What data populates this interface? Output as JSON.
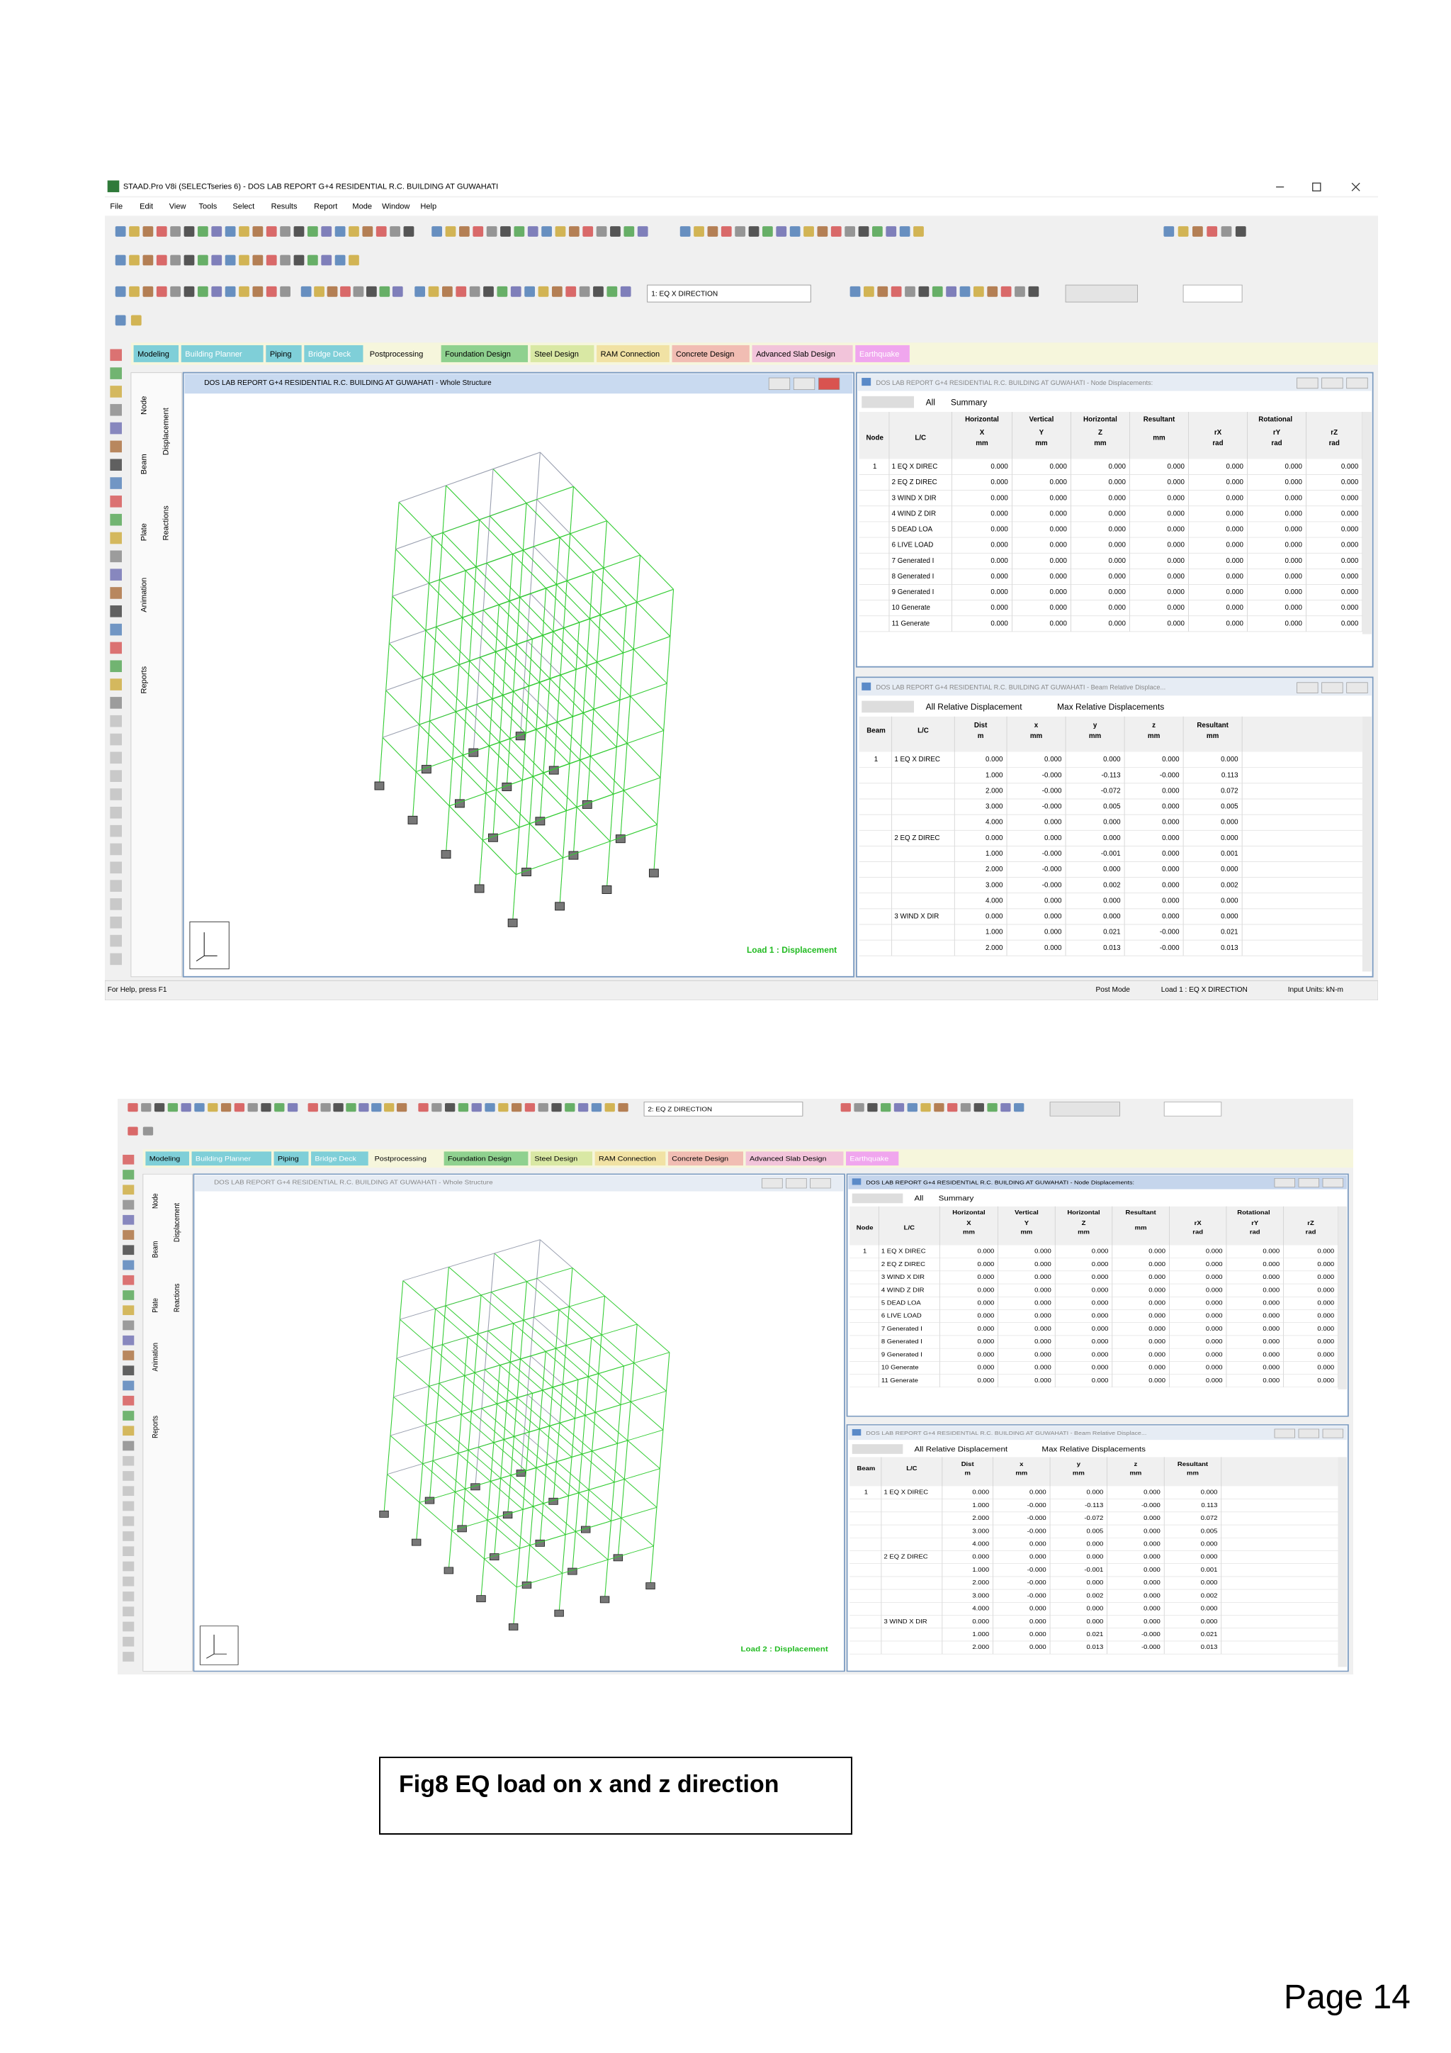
{
  "screenshots": [
    {
      "app_title": "STAAD.Pro V8i (SELECTseries 6) - DOS LAB REPORT G+4 RESIDENTIAL R.C. BUILDING AT GUWAHATI",
      "menu": [
        "File",
        "Edit",
        "View",
        "Tools",
        "Select",
        "Results",
        "Report",
        "Mode",
        "Window",
        "Help"
      ],
      "load_case": "1: EQ X DIRECTION",
      "tabs": [
        "Modeling",
        "Building Planner",
        "Piping",
        "Bridge Deck",
        "Postprocessing",
        "Foundation Design",
        "Steel Design",
        "RAM Connection",
        "Concrete Design",
        "Advanced Slab Design",
        "Earthquake"
      ],
      "side_tabs": [
        "Node",
        "Beam",
        "Plate",
        "Animation",
        "Reports"
      ],
      "result_tabs": [
        "Displacement",
        "Reactions"
      ],
      "view_title": "DOS LAB REPORT G+4 RESIDENTIAL R.C. BUILDING AT GUWAHATI - Whole Structure",
      "view_label": "Load 1 : Displacement",
      "node_window": {
        "title": "DOS LAB REPORT G+4 RESIDENTIAL R.C. BUILDING AT GUWAHATI - Node Displacements:",
        "tabs": [
          "All",
          "Summary"
        ],
        "group_headers": [
          "Horizontal",
          "Vertical",
          "Horizontal",
          "Resultant",
          "Rotational"
        ],
        "columns": [
          [
            "Node"
          ],
          [
            "L/C"
          ],
          [
            "X",
            "mm"
          ],
          [
            "Y",
            "mm"
          ],
          [
            "Z",
            "mm"
          ],
          [
            "mm"
          ],
          [
            "rX",
            "rad"
          ],
          [
            "rY",
            "rad"
          ],
          [
            "rZ",
            "rad"
          ]
        ],
        "rows": [
          [
            "1",
            "1 EQ X DIREC",
            "0.000",
            "0.000",
            "0.000",
            "0.000",
            "0.000",
            "0.000",
            "0.000"
          ],
          [
            null,
            "2 EQ Z DIREC",
            "0.000",
            "0.000",
            "0.000",
            "0.000",
            "0.000",
            "0.000",
            "0.000"
          ],
          [
            null,
            "3 WIND X DIR",
            "0.000",
            "0.000",
            "0.000",
            "0.000",
            "0.000",
            "0.000",
            "0.000"
          ],
          [
            null,
            "4 WIND Z DIR",
            "0.000",
            "0.000",
            "0.000",
            "0.000",
            "0.000",
            "0.000",
            "0.000"
          ],
          [
            null,
            "5 DEAD LOA",
            "0.000",
            "0.000",
            "0.000",
            "0.000",
            "0.000",
            "0.000",
            "0.000"
          ],
          [
            null,
            "6 LIVE LOAD",
            "0.000",
            "0.000",
            "0.000",
            "0.000",
            "0.000",
            "0.000",
            "0.000"
          ],
          [
            null,
            "7 Generated I",
            "0.000",
            "0.000",
            "0.000",
            "0.000",
            "0.000",
            "0.000",
            "0.000"
          ],
          [
            null,
            "8 Generated I",
            "0.000",
            "0.000",
            "0.000",
            "0.000",
            "0.000",
            "0.000",
            "0.000"
          ],
          [
            null,
            "9 Generated I",
            "0.000",
            "0.000",
            "0.000",
            "0.000",
            "0.000",
            "0.000",
            "0.000"
          ],
          [
            null,
            "10 Generate",
            "0.000",
            "0.000",
            "0.000",
            "0.000",
            "0.000",
            "0.000",
            "0.000"
          ],
          [
            null,
            "11 Generate",
            "0.000",
            "0.000",
            "0.000",
            "0.000",
            "0.000",
            "0.000",
            "0.000"
          ]
        ]
      },
      "beam_window": {
        "title": "DOS LAB REPORT G+4 RESIDENTIAL R.C. BUILDING AT GUWAHATI - Beam Relative Displace...",
        "tabs": [
          "All Relative Displacement",
          "Max Relative Displacements"
        ],
        "columns": [
          [
            "Beam"
          ],
          [
            "L/C"
          ],
          [
            "Dist",
            "m"
          ],
          [
            "x",
            "mm"
          ],
          [
            "y",
            "mm"
          ],
          [
            "z",
            "mm"
          ],
          [
            "Resultant",
            "mm"
          ]
        ],
        "rows": [
          [
            "1",
            "1 EQ X DIREC",
            "0.000",
            "0.000",
            "0.000",
            "0.000",
            "0.000"
          ],
          [
            null,
            null,
            "1.000",
            "-0.000",
            "-0.113",
            "-0.000",
            "0.113"
          ],
          [
            null,
            null,
            "2.000",
            "-0.000",
            "-0.072",
            "0.000",
            "0.072"
          ],
          [
            null,
            null,
            "3.000",
            "-0.000",
            "0.005",
            "0.000",
            "0.005"
          ],
          [
            null,
            null,
            "4.000",
            "0.000",
            "0.000",
            "0.000",
            "0.000"
          ],
          [
            null,
            "2 EQ Z DIREC",
            "0.000",
            "0.000",
            "0.000",
            "0.000",
            "0.000"
          ],
          [
            null,
            null,
            "1.000",
            "-0.000",
            "-0.001",
            "0.000",
            "0.001"
          ],
          [
            null,
            null,
            "2.000",
            "-0.000",
            "0.000",
            "0.000",
            "0.000"
          ],
          [
            null,
            null,
            "3.000",
            "-0.000",
            "0.002",
            "0.000",
            "0.002"
          ],
          [
            null,
            null,
            "4.000",
            "0.000",
            "0.000",
            "0.000",
            "0.000"
          ],
          [
            null,
            "3 WIND X DIR",
            "0.000",
            "0.000",
            "0.000",
            "0.000",
            "0.000"
          ],
          [
            null,
            null,
            "1.000",
            "0.000",
            "0.021",
            "-0.000",
            "0.021"
          ],
          [
            null,
            null,
            "2.000",
            "0.000",
            "0.013",
            "-0.000",
            "0.013"
          ]
        ]
      },
      "status": [
        "For Help, press F1",
        "Post Mode",
        "Load 1 : EQ X DIRECTION",
        "Input Units: kN-m"
      ]
    },
    {
      "load_case": "2: EQ Z DIRECTION",
      "tabs": [
        "Modeling",
        "Building Planner",
        "Piping",
        "Bridge Deck",
        "Postprocessing",
        "Foundation Design",
        "Steel Design",
        "RAM Connection",
        "Concrete Design",
        "Advanced Slab Design",
        "Earthquake"
      ],
      "side_tabs": [
        "Node",
        "Beam",
        "Plate",
        "Animation",
        "Reports"
      ],
      "result_tabs": [
        "Displacement",
        "Reactions"
      ],
      "view_title": "DOS LAB REPORT G+4 RESIDENTIAL R.C. BUILDING AT GUWAHATI - Whole Structure",
      "view_label": "Load 2 : Displacement",
      "node_window": {
        "title": "DOS LAB REPORT G+4 RESIDENTIAL R.C. BUILDING AT GUWAHATI - Node Displacements:",
        "tabs": [
          "All",
          "Summary"
        ],
        "group_headers": [
          "Horizontal",
          "Vertical",
          "Horizontal",
          "Resultant",
          "Rotational"
        ],
        "columns": [
          [
            "Node"
          ],
          [
            "L/C"
          ],
          [
            "X",
            "mm"
          ],
          [
            "Y",
            "mm"
          ],
          [
            "Z",
            "mm"
          ],
          [
            "mm"
          ],
          [
            "rX",
            "rad"
          ],
          [
            "rY",
            "rad"
          ],
          [
            "rZ",
            "rad"
          ]
        ],
        "rows": [
          [
            "1",
            "1 EQ X DIREC",
            "0.000",
            "0.000",
            "0.000",
            "0.000",
            "0.000",
            "0.000",
            "0.000"
          ],
          [
            null,
            "2 EQ Z DIREC",
            "0.000",
            "0.000",
            "0.000",
            "0.000",
            "0.000",
            "0.000",
            "0.000"
          ],
          [
            null,
            "3 WIND X DIR",
            "0.000",
            "0.000",
            "0.000",
            "0.000",
            "0.000",
            "0.000",
            "0.000"
          ],
          [
            null,
            "4 WIND Z DIR",
            "0.000",
            "0.000",
            "0.000",
            "0.000",
            "0.000",
            "0.000",
            "0.000"
          ],
          [
            null,
            "5 DEAD LOA",
            "0.000",
            "0.000",
            "0.000",
            "0.000",
            "0.000",
            "0.000",
            "0.000"
          ],
          [
            null,
            "6 LIVE LOAD",
            "0.000",
            "0.000",
            "0.000",
            "0.000",
            "0.000",
            "0.000",
            "0.000"
          ],
          [
            null,
            "7 Generated I",
            "0.000",
            "0.000",
            "0.000",
            "0.000",
            "0.000",
            "0.000",
            "0.000"
          ],
          [
            null,
            "8 Generated I",
            "0.000",
            "0.000",
            "0.000",
            "0.000",
            "0.000",
            "0.000",
            "0.000"
          ],
          [
            null,
            "9 Generated I",
            "0.000",
            "0.000",
            "0.000",
            "0.000",
            "0.000",
            "0.000",
            "0.000"
          ],
          [
            null,
            "10 Generate",
            "0.000",
            "0.000",
            "0.000",
            "0.000",
            "0.000",
            "0.000",
            "0.000"
          ],
          [
            null,
            "11 Generate",
            "0.000",
            "0.000",
            "0.000",
            "0.000",
            "0.000",
            "0.000",
            "0.000"
          ]
        ]
      },
      "beam_window": {
        "title": "DOS LAB REPORT G+4 RESIDENTIAL R.C. BUILDING AT GUWAHATI - Beam Relative Displace...",
        "tabs": [
          "All Relative Displacement",
          "Max Relative Displacements"
        ],
        "columns": [
          [
            "Beam"
          ],
          [
            "L/C"
          ],
          [
            "Dist",
            "m"
          ],
          [
            "x",
            "mm"
          ],
          [
            "y",
            "mm"
          ],
          [
            "z",
            "mm"
          ],
          [
            "Resultant",
            "mm"
          ]
        ],
        "rows": [
          [
            "1",
            "1 EQ X DIREC",
            "0.000",
            "0.000",
            "0.000",
            "0.000",
            "0.000"
          ],
          [
            null,
            null,
            "1.000",
            "-0.000",
            "-0.113",
            "-0.000",
            "0.113"
          ],
          [
            null,
            null,
            "2.000",
            "-0.000",
            "-0.072",
            "0.000",
            "0.072"
          ],
          [
            null,
            null,
            "3.000",
            "-0.000",
            "0.005",
            "0.000",
            "0.005"
          ],
          [
            null,
            null,
            "4.000",
            "0.000",
            "0.000",
            "0.000",
            "0.000"
          ],
          [
            null,
            "2 EQ Z DIREC",
            "0.000",
            "0.000",
            "0.000",
            "0.000",
            "0.000"
          ],
          [
            null,
            null,
            "1.000",
            "-0.000",
            "-0.001",
            "0.000",
            "0.001"
          ],
          [
            null,
            null,
            "2.000",
            "-0.000",
            "0.000",
            "0.000",
            "0.000"
          ],
          [
            null,
            null,
            "3.000",
            "-0.000",
            "0.002",
            "0.000",
            "0.002"
          ],
          [
            null,
            null,
            "4.000",
            "0.000",
            "0.000",
            "0.000",
            "0.000"
          ],
          [
            null,
            "3 WIND X DIR",
            "0.000",
            "0.000",
            "0.000",
            "0.000",
            "0.000"
          ],
          [
            null,
            null,
            "1.000",
            "0.000",
            "0.021",
            "-0.000",
            "0.021"
          ],
          [
            null,
            null,
            "2.000",
            "0.000",
            "0.013",
            "-0.000",
            "0.013"
          ]
        ]
      }
    }
  ],
  "caption": "Fig8  EQ load on x and z direction",
  "page_number": "Page 14"
}
